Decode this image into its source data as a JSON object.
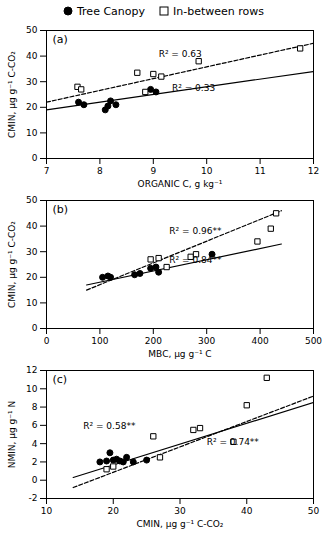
{
  "chart_data": [
    {
      "type": "scatter",
      "title": "(a)",
      "legend": "top",
      "grid": false,
      "x_label": "ORGANIC C, g kg⁻¹",
      "y_label": "CMIN, µg g⁻¹ C-CO₂",
      "xlim": [
        7,
        12
      ],
      "ylim": [
        0,
        50
      ],
      "xticks": [
        7,
        8,
        9,
        10,
        11,
        12
      ],
      "yticks": [
        0,
        10,
        20,
        30,
        40,
        50
      ],
      "series": [
        {
          "name": "Tree Canopy",
          "type": "scatter",
          "marker": "filled_circle",
          "color": "black",
          "x": [
            7.6,
            7.7,
            8.1,
            8.15,
            8.2,
            8.3,
            8.95,
            9.05
          ],
          "values": [
            22,
            21,
            19.0,
            20.5,
            22.5,
            21,
            27,
            26
          ]
        },
        {
          "name": "In-between rows",
          "type": "scatter",
          "marker": "open_square",
          "color": "black",
          "x": [
            7.58,
            7.65,
            8.7,
            8.85,
            9.0,
            9.15,
            9.85,
            11.75
          ],
          "values": [
            28,
            27,
            33.5,
            26,
            33,
            32,
            38,
            43
          ]
        },
        {
          "name": "Tree Canopy",
          "type": "line",
          "line_style": "solid",
          "color": "black",
          "x": [
            7,
            12
          ],
          "values": [
            19.0,
            34.0
          ]
        },
        {
          "name": "In-between rows",
          "type": "line",
          "line_style": "dashed",
          "color": "black",
          "x": [
            7,
            12
          ],
          "values": [
            22.0,
            45.0
          ]
        }
      ],
      "annotations": [
        {
          "text": "R² = 0.33",
          "x": 9.35,
          "y": 26.5
        },
        {
          "text": "R² = 0.63",
          "x": 9.1,
          "y": 39.5
        }
      ]
    },
    {
      "type": "scatter",
      "title": "(b)",
      "grid": false,
      "x_label": "MBC, μg g⁻¹ C",
      "y_label": "CMIN, µg g⁻¹ C-CO₂",
      "xlim": [
        0,
        500
      ],
      "ylim": [
        0,
        50
      ],
      "xticks": [
        0,
        100,
        200,
        300,
        400,
        500
      ],
      "yticks": [
        0,
        10,
        20,
        30,
        40,
        50
      ],
      "series": [
        {
          "name": "Tree Canopy",
          "type": "scatter",
          "marker": "filled_circle",
          "color": "black",
          "x": [
            105,
            115,
            120,
            165,
            175,
            195,
            205,
            210,
            310
          ],
          "values": [
            20,
            20.5,
            20,
            21,
            21.5,
            23.5,
            24,
            22,
            29
          ]
        },
        {
          "name": "In-between rows",
          "type": "scatter",
          "marker": "open_square",
          "color": "black",
          "x": [
            195,
            210,
            225,
            270,
            280,
            395,
            420,
            430
          ],
          "values": [
            27,
            27.5,
            24,
            28,
            29,
            34,
            39,
            45
          ]
        },
        {
          "name": "Tree Canopy",
          "type": "line",
          "line_style": "solid",
          "color": "black",
          "x": [
            75,
            440
          ],
          "values": [
            17.0,
            33.0
          ]
        },
        {
          "name": "In-between rows",
          "type": "line",
          "line_style": "dashed",
          "color": "black",
          "x": [
            75,
            440
          ],
          "values": [
            15.0,
            46.0
          ]
        }
      ],
      "annotations": [
        {
          "text": "R² = 0.84**",
          "x": 230,
          "y": 25.5
        },
        {
          "text": "R² = 0.96**",
          "x": 230,
          "y": 37.0
        }
      ]
    },
    {
      "type": "scatter",
      "title": "(c)",
      "grid": false,
      "x_label": "CMIN, µg g⁻¹ C-CO₂",
      "y_label": "NMIN, µg g⁻¹ N",
      "xlim": [
        10,
        50
      ],
      "ylim": [
        -2,
        12
      ],
      "xticks": [
        10,
        20,
        30,
        40,
        50
      ],
      "yticks": [
        -2,
        0,
        2,
        4,
        6,
        8,
        10,
        12
      ],
      "series": [
        {
          "name": "Tree Canopy",
          "type": "scatter",
          "marker": "filled_circle",
          "color": "black",
          "x": [
            18,
            19,
            19.5,
            20,
            20.5,
            21,
            21.5,
            22,
            23,
            25
          ],
          "values": [
            2.0,
            2.1,
            3.0,
            2.2,
            2.3,
            2.1,
            2.0,
            2.5,
            2.0,
            2.2
          ]
        },
        {
          "name": "In-between rows",
          "type": "scatter",
          "marker": "open_square",
          "color": "black",
          "x": [
            19,
            20,
            26,
            27,
            32,
            33,
            38,
            40,
            43
          ],
          "values": [
            1.2,
            1.5,
            4.8,
            2.5,
            5.5,
            5.7,
            4.2,
            8.2,
            11.2
          ]
        },
        {
          "name": "Tree Canopy",
          "type": "line",
          "line_style": "solid",
          "color": "black",
          "x": [
            14,
            50
          ],
          "values": [
            0.3,
            8.5
          ]
        },
        {
          "name": "In-between rows",
          "type": "line",
          "line_style": "dashed",
          "color": "black",
          "x": [
            14,
            50
          ],
          "values": [
            -0.8,
            9.2
          ]
        }
      ],
      "annotations": [
        {
          "text": "R² = 0.58**",
          "x": 15.5,
          "y": 5.6
        },
        {
          "text": "R² = 0.74**",
          "x": 34.0,
          "y": 3.8
        }
      ]
    }
  ]
}
